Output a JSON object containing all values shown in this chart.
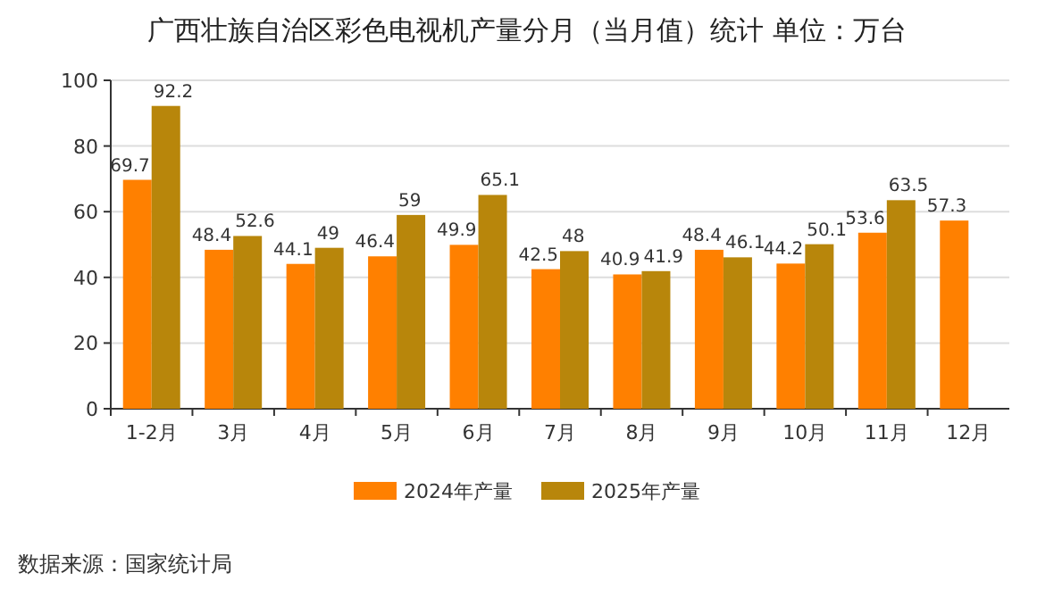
{
  "chart_data": {
    "type": "bar",
    "title": "广西壮族自治区彩色电视机产量分月（当月值）统计 单位：万台",
    "categories": [
      "1-2月",
      "3月",
      "4月",
      "5月",
      "6月",
      "7月",
      "8月",
      "9月",
      "10月",
      "11月",
      "12月"
    ],
    "series": [
      {
        "name": "2024年产量",
        "color": "#ff8000",
        "values": [
          69.7,
          48.4,
          44.1,
          46.4,
          49.9,
          42.5,
          40.9,
          48.4,
          44.2,
          53.6,
          57.3
        ]
      },
      {
        "name": "2025年产量",
        "color": "#b8860b",
        "values": [
          92.2,
          52.6,
          49,
          59,
          65.1,
          48,
          41.9,
          46.1,
          50.1,
          63.5,
          null
        ]
      }
    ],
    "ylim": [
      0,
      100
    ],
    "yticks": [
      0,
      20,
      40,
      60,
      80,
      100
    ],
    "grid": "y",
    "legend": "bottom",
    "data_labels": true,
    "annotations": [
      "数据来源：国家统计局"
    ]
  }
}
